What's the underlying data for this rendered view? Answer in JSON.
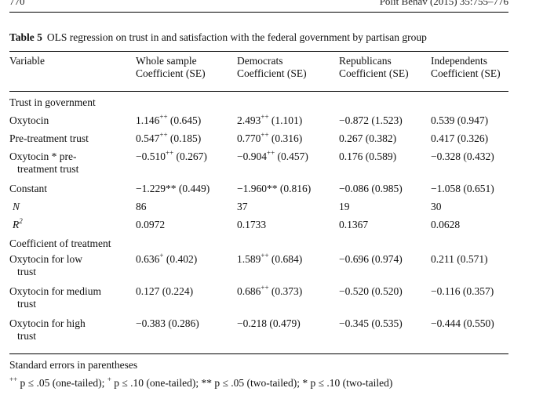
{
  "running_head": {
    "left": "770",
    "right": "Polit Behav (2015) 35:755–776"
  },
  "caption": {
    "label": "Table 5",
    "text": "OLS regression on trust in and satisfaction with the federal government by partisan group"
  },
  "columns": [
    {
      "line1": "Variable",
      "line2": ""
    },
    {
      "line1": "Whole sample",
      "line2": "Coefficient (SE)"
    },
    {
      "line1": "Democrats",
      "line2": "Coefficient (SE)"
    },
    {
      "line1": "Republicans",
      "line2": "Coefficient (SE)"
    },
    {
      "line1": "Independents",
      "line2": "Coefficient (SE)"
    }
  ],
  "sections": [
    {
      "title": "Trust in government",
      "rows": [
        {
          "label": "Oxytocin",
          "label_cont": "",
          "cells": [
            {
              "v": "1.146",
              "sup": "++",
              "se": " (0.645)"
            },
            {
              "v": "2.493",
              "sup": "++",
              "se": " (1.101)"
            },
            {
              "v": "−0.872",
              "sup": "",
              "se": " (1.523)"
            },
            {
              "v": "0.539",
              "sup": "",
              "se": " (0.947)"
            }
          ]
        },
        {
          "label": "Pre-treatment trust",
          "label_cont": "",
          "cells": [
            {
              "v": "0.547",
              "sup": "++",
              "se": " (0.185)"
            },
            {
              "v": "0.770",
              "sup": "++",
              "se": " (0.316)"
            },
            {
              "v": "0.267",
              "sup": "",
              "se": " (0.382)"
            },
            {
              "v": "0.417",
              "sup": "",
              "se": " (0.326)"
            }
          ]
        },
        {
          "label": "Oxytocin * pre-",
          "label_cont": "treatment trust",
          "cells": [
            {
              "v": "−0.510",
              "sup": "++",
              "se": " (0.267)"
            },
            {
              "v": "−0.904",
              "sup": "++",
              "se": " (0.457)"
            },
            {
              "v": "0.176",
              "sup": "",
              "se": " (0.589)"
            },
            {
              "v": "−0.328",
              "sup": "",
              "se": " (0.432)"
            }
          ]
        },
        {
          "label": "Constant",
          "label_cont": "",
          "cells": [
            {
              "v": "−1.229**",
              "sup": "",
              "se": " (0.449)"
            },
            {
              "v": "−1.960**",
              "sup": "",
              "se": " (0.816)"
            },
            {
              "v": "−0.086",
              "sup": "",
              "se": " (0.985)"
            },
            {
              "v": "−1.058",
              "sup": "",
              "se": " (0.651)"
            }
          ]
        }
      ]
    }
  ],
  "stats": {
    "n": {
      "label": "N",
      "values": [
        "86",
        "37",
        "19",
        "30"
      ]
    },
    "r2": {
      "label": "R",
      "label_sup": "2",
      "values": [
        "0.0972",
        "0.1733",
        "0.1367",
        "0.0628"
      ]
    }
  },
  "treatment": {
    "title": "Coefficient of treatment",
    "rows": [
      {
        "label": "Oxytocin for low",
        "label_cont": "trust",
        "cells": [
          {
            "v": "0.636",
            "sup": "+",
            "se": " (0.402)"
          },
          {
            "v": "1.589",
            "sup": "++",
            "se": " (0.684)"
          },
          {
            "v": "−0.696",
            "sup": "",
            "se": " (0.974)"
          },
          {
            "v": "0.211",
            "sup": "",
            "se": " (0.571)"
          }
        ]
      },
      {
        "label": "Oxytocin for medium",
        "label_cont": "trust",
        "cells": [
          {
            "v": "0.127",
            "sup": "",
            "se": " (0.224)"
          },
          {
            "v": "0.686",
            "sup": "++",
            "se": " (0.373)"
          },
          {
            "v": "−0.520",
            "sup": "",
            "se": " (0.520)"
          },
          {
            "v": "−0.116",
            "sup": "",
            "se": " (0.357)"
          }
        ]
      },
      {
        "label": "Oxytocin for high",
        "label_cont": "trust",
        "cells": [
          {
            "v": "−0.383",
            "sup": "",
            "se": " (0.286)"
          },
          {
            "v": "−0.218",
            "sup": "",
            "se": " (0.479)"
          },
          {
            "v": "−0.345",
            "sup": "",
            "se": " (0.535)"
          },
          {
            "v": "−0.444",
            "sup": "",
            "se": " (0.550)"
          }
        ]
      }
    ]
  },
  "notes": {
    "line1": "Standard errors in parentheses",
    "fn_sup1": "++",
    "fn_t1": " p ≤ .05 (one-tailed); ",
    "fn_sup2": "+",
    "fn_t2": " p ≤ .10 (one-tailed); ** p ≤ .05 (two-tailed); * p ≤ .10 (two-tailed)"
  }
}
